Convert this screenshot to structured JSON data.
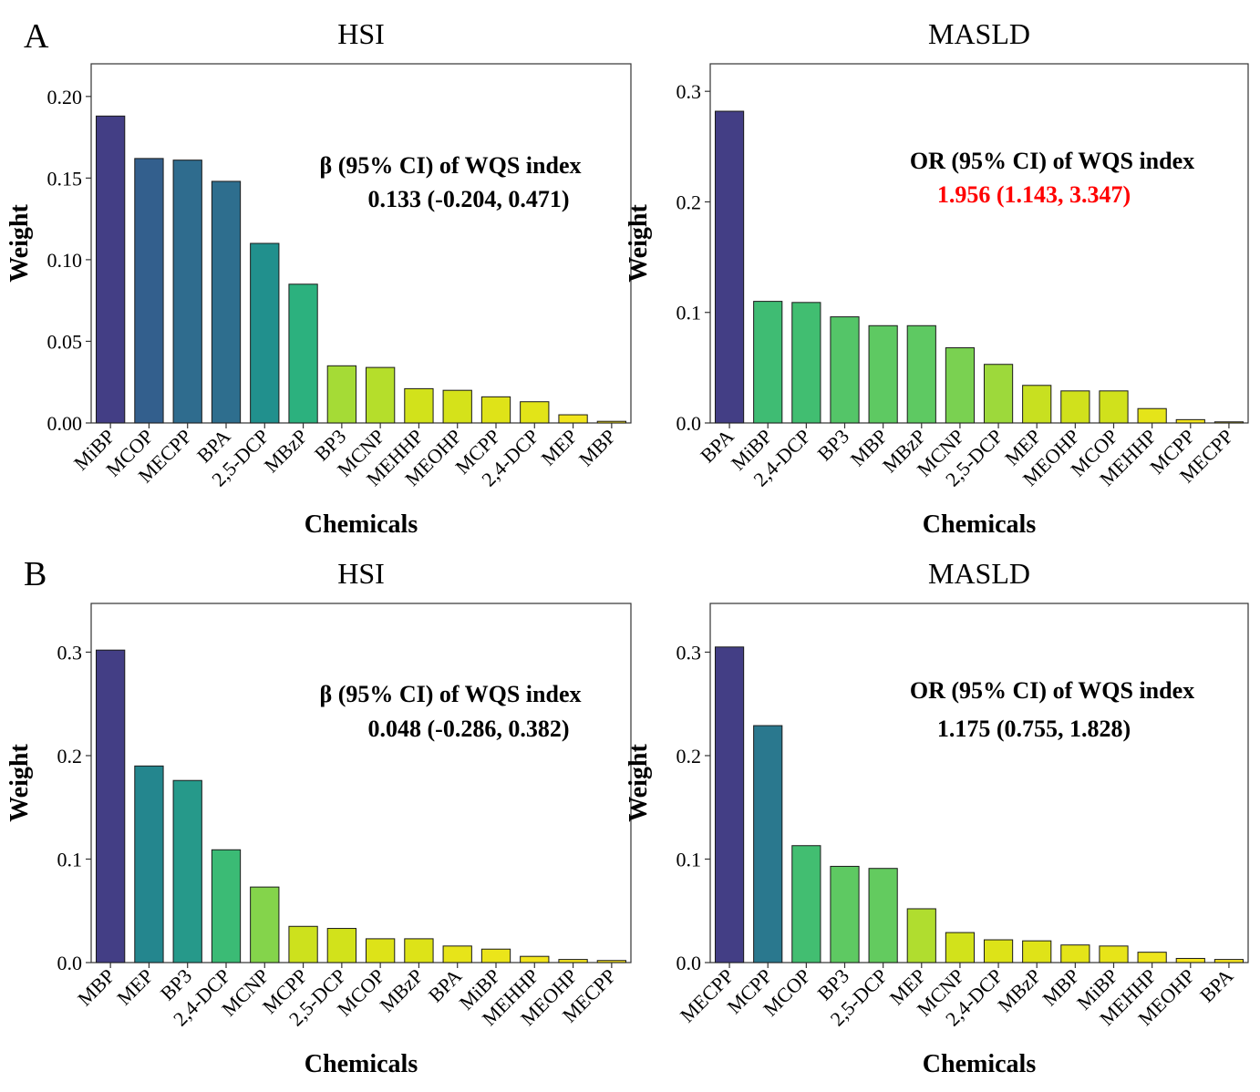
{
  "panels": {
    "A": "A",
    "B": "B"
  },
  "colors": {
    "annotation_default": "#000000",
    "annotation_significant": "#ff0000"
  },
  "chart_data": [
    {
      "type": "bar",
      "panel": "A",
      "title": "HSI",
      "xlabel": "Chemicals",
      "ylabel": "Weight",
      "ylim": [
        0,
        0.22
      ],
      "yticks": [
        "0.00",
        "0.05",
        "0.10",
        "0.15",
        "0.20"
      ],
      "ytick_values": [
        0,
        0.05,
        0.1,
        0.15,
        0.2
      ],
      "categories": [
        "MiBP",
        "MCOP",
        "MECPP",
        "BPA",
        "2,5-DCP",
        "MBzP",
        "BP3",
        "MCNP",
        "MEHHP",
        "MEOHP",
        "MCPP",
        "2,4-DCP",
        "MEP",
        "MBP"
      ],
      "values": [
        0.188,
        0.162,
        0.161,
        0.148,
        0.11,
        0.085,
        0.035,
        0.034,
        0.021,
        0.02,
        0.016,
        0.013,
        0.005,
        0.001
      ],
      "colors": [
        "#433e85",
        "#335f8d",
        "#2f6c8e",
        "#2e6e8e",
        "#21908d",
        "#2cb17e",
        "#a5db36",
        "#b5de2b",
        "#d2e21b",
        "#d5e21a",
        "#dfe318",
        "#e2e418",
        "#f1e51d",
        "#f6e620"
      ],
      "annotation": {
        "label": "β (95% CI) of WQS index",
        "value": "0.133 (-0.204, 0.471)",
        "significant": false
      }
    },
    {
      "type": "bar",
      "panel": "A",
      "title": "MASLD",
      "xlabel": "Chemicals",
      "ylabel": "Weight",
      "ylim": [
        0,
        0.3249
      ],
      "yticks": [
        "0.0",
        "0.1",
        "0.2",
        "0.3"
      ],
      "ytick_values": [
        0,
        0.1,
        0.2,
        0.3
      ],
      "categories": [
        "BPA",
        "MiBP",
        "2,4-DCP",
        "BP3",
        "MBP",
        "MBzP",
        "MCNP",
        "2,5-DCP",
        "MEP",
        "MEOHP",
        "MCOP",
        "MEHHP",
        "MCPP",
        "MECPP"
      ],
      "values": [
        0.282,
        0.11,
        0.109,
        0.096,
        0.088,
        0.088,
        0.068,
        0.053,
        0.034,
        0.029,
        0.029,
        0.013,
        0.003,
        0.001
      ],
      "colors": [
        "#433e85",
        "#3fbc73",
        "#41be71",
        "#54c568",
        "#5ec962",
        "#5ec962",
        "#7ad151",
        "#9dd93b",
        "#c8e020",
        "#d0e11c",
        "#d0e11c",
        "#e5e419",
        "#f4e61e",
        "#f8e621"
      ],
      "annotation": {
        "label": "OR (95% CI) of WQS index",
        "value": "1.956 (1.143, 3.347)",
        "significant": true
      }
    },
    {
      "type": "bar",
      "panel": "B",
      "title": "HSI",
      "xlabel": "Chemicals",
      "ylabel": "Weight",
      "ylim": [
        0,
        0.3471
      ],
      "yticks": [
        "0.0",
        "0.1",
        "0.2",
        "0.3"
      ],
      "ytick_values": [
        0,
        0.1,
        0.2,
        0.3
      ],
      "categories": [
        "MBP",
        "MEP",
        "BP3",
        "2,4-DCP",
        "MCNP",
        "MCPP",
        "2,5-DCP",
        "MCOP",
        "MBzP",
        "BPA",
        "MiBP",
        "MEHHP",
        "MEOHP",
        "MECPP"
      ],
      "values": [
        0.302,
        0.19,
        0.176,
        0.109,
        0.073,
        0.035,
        0.033,
        0.023,
        0.023,
        0.016,
        0.013,
        0.006,
        0.003,
        0.002
      ],
      "colors": [
        "#433e85",
        "#24868e",
        "#26998a",
        "#3bbb75",
        "#84d44b",
        "#cde11d",
        "#d2e21b",
        "#dde318",
        "#dde318",
        "#e7e419",
        "#ebe51a",
        "#f2e51d",
        "#f6e620",
        "#f8e621"
      ],
      "annotation": {
        "label": "β (95% CI) of WQS index",
        "value": "0.048 (-0.286, 0.382)",
        "significant": false
      }
    },
    {
      "type": "bar",
      "panel": "B",
      "title": "MASLD",
      "xlabel": "Chemicals",
      "ylabel": "Weight",
      "ylim": [
        0,
        0.3471
      ],
      "yticks": [
        "0.0",
        "0.1",
        "0.2",
        "0.3"
      ],
      "ytick_values": [
        0,
        0.1,
        0.2,
        0.3
      ],
      "categories": [
        "MECPP",
        "MCPP",
        "MCOP",
        "BP3",
        "2,5-DCP",
        "MEP",
        "MCNP",
        "2,4-DCP",
        "MBzP",
        "MBP",
        "MiBP",
        "MEHHP",
        "MEOHP",
        "BPA"
      ],
      "values": [
        0.305,
        0.229,
        0.113,
        0.093,
        0.091,
        0.052,
        0.029,
        0.022,
        0.021,
        0.017,
        0.016,
        0.01,
        0.004,
        0.003
      ],
      "colors": [
        "#433e85",
        "#2a788e",
        "#42be71",
        "#5ec962",
        "#63cb5f",
        "#b0dd2f",
        "#d2e21b",
        "#dde318",
        "#dfe318",
        "#e4e419",
        "#e7e419",
        "#eee51c",
        "#f6e620",
        "#f8e621"
      ],
      "annotation": {
        "label": "OR (95% CI) of WQS index",
        "value": "1.175 (0.755, 1.828)",
        "significant": false
      }
    }
  ]
}
